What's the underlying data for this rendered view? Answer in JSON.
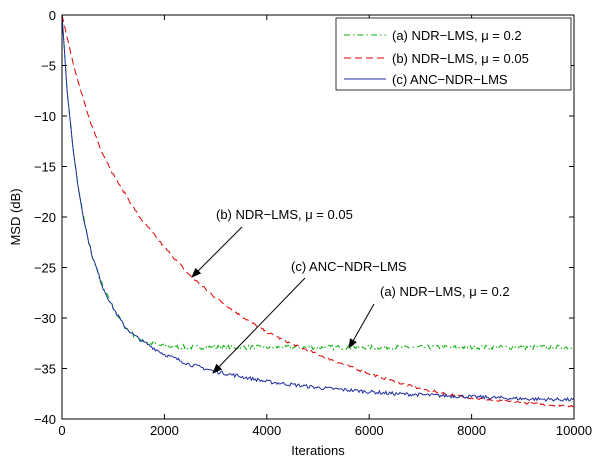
{
  "chart_data": {
    "type": "line",
    "xlabel": "Iterations",
    "ylabel": "MSD (dB)",
    "xlim": [
      0,
      10000
    ],
    "ylim": [
      -40,
      0
    ],
    "xticks": [
      0,
      2000,
      4000,
      6000,
      8000,
      10000
    ],
    "yticks": [
      0,
      -5,
      -10,
      -15,
      -20,
      -25,
      -30,
      -35,
      -40
    ],
    "grid": false,
    "legend_position": "top-right",
    "series": [
      {
        "name": "(a) NDR−LMS, μ = 0.2",
        "color": "#00b000",
        "style": "dash-dot",
        "x": [
          0,
          100,
          200,
          300,
          400,
          500,
          600,
          800,
          1000,
          1200,
          1400,
          1600,
          1800,
          2000,
          2500,
          3000,
          3500,
          4000,
          4500,
          5000,
          5500,
          6000,
          6500,
          7000,
          7500,
          8000,
          8500,
          9000,
          9500,
          10000
        ],
        "y": [
          0,
          -7.5,
          -12.5,
          -16.5,
          -19.5,
          -22,
          -24,
          -27,
          -29,
          -30.7,
          -31.7,
          -32.3,
          -32.6,
          -32.8,
          -32.9,
          -32.9,
          -32.9,
          -32.9,
          -32.9,
          -32.9,
          -32.9,
          -32.9,
          -32.9,
          -32.9,
          -32.9,
          -32.9,
          -32.9,
          -32.9,
          -32.9,
          -32.9
        ]
      },
      {
        "name": "(b) NDR−LMS, μ = 0.05",
        "color": "#e00000",
        "style": "dash",
        "x": [
          0,
          250,
          500,
          750,
          1000,
          1500,
          2000,
          2500,
          3000,
          3500,
          4000,
          4500,
          5000,
          5500,
          6000,
          6500,
          7000,
          7500,
          8000,
          8500,
          9000,
          9500,
          10000
        ],
        "y": [
          0,
          -5.5,
          -9.8,
          -13.2,
          -15.8,
          -19.9,
          -23,
          -25.8,
          -28,
          -29.8,
          -31.4,
          -32.6,
          -33.6,
          -34.6,
          -35.5,
          -36.3,
          -37,
          -37.5,
          -37.9,
          -38.2,
          -38.4,
          -38.6,
          -38.7
        ]
      },
      {
        "name": "(c) ANC−NDR−LMS",
        "color": "#1f2fa0",
        "style": "solid",
        "x": [
          0,
          100,
          200,
          300,
          400,
          500,
          600,
          800,
          1000,
          1200,
          1400,
          1600,
          1800,
          2000,
          2500,
          3000,
          3500,
          4000,
          4500,
          5000,
          5500,
          6000,
          6500,
          7000,
          7500,
          8000,
          8500,
          9000,
          9500,
          10000
        ],
        "y": [
          0,
          -7.5,
          -12.5,
          -16.5,
          -19.5,
          -22,
          -24,
          -27,
          -29,
          -30.7,
          -31.7,
          -32.4,
          -33,
          -33.6,
          -34.6,
          -35.3,
          -35.8,
          -36.3,
          -36.6,
          -36.9,
          -37.1,
          -37.3,
          -37.5,
          -37.6,
          -37.7,
          -37.8,
          -37.9,
          -38,
          -38.05,
          -38.1
        ]
      }
    ],
    "annotations": [
      {
        "text": "(b) NDR−LMS, μ = 0.05",
        "target": [
          2500,
          -26.1
        ]
      },
      {
        "text": "(c) ANC−NDR−LMS",
        "target": [
          2950,
          -35.3
        ]
      },
      {
        "text": "(a) NDR−LMS, μ = 0.2",
        "target": [
          5700,
          -33
        ]
      }
    ]
  }
}
